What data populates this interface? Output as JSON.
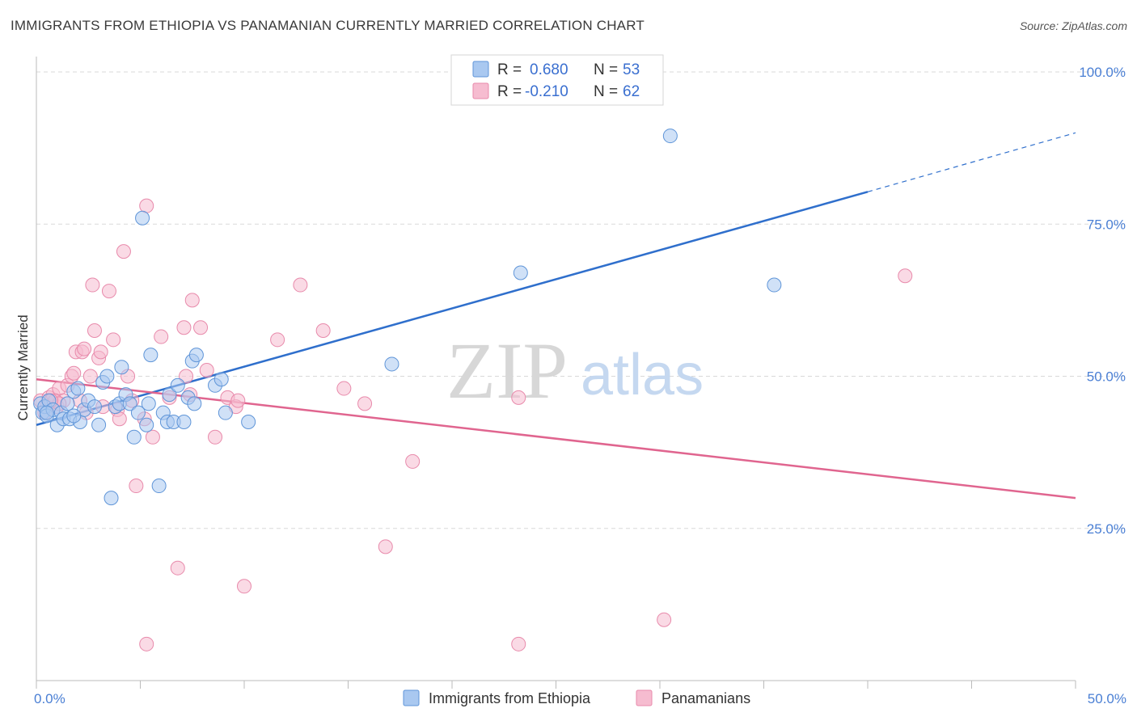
{
  "title": "IMMIGRANTS FROM ETHIOPIA VS PANAMANIAN CURRENTLY MARRIED CORRELATION CHART",
  "source": "Source: ZipAtlas.com",
  "watermark": {
    "zip": "ZIP",
    "atlas": "atlas"
  },
  "legend": {
    "rows": [
      {
        "r_label": "R =",
        "r_value": "0.680",
        "n_label": "N =",
        "n_value": "53"
      },
      {
        "r_label": "R =",
        "r_value": "-0.210",
        "n_label": "N =",
        "n_value": "62"
      }
    ]
  },
  "colors": {
    "blue_fill": "#a9c8f0",
    "blue_stroke": "#5f95d8",
    "blue_line": "#2f6fcc",
    "pink_fill": "#f6bcd0",
    "pink_stroke": "#e88aab",
    "pink_line": "#e0658f",
    "grid": "#d9d9d9",
    "tick_text": "#4a7fd4"
  },
  "chart_data": {
    "type": "scatter",
    "title": "IMMIGRANTS FROM ETHIOPIA VS PANAMANIAN CURRENTLY MARRIED CORRELATION CHART",
    "xlabel": "",
    "ylabel": "Currently Married",
    "xlim": [
      0,
      50
    ],
    "ylim": [
      0,
      105
    ],
    "x_tick_labels": [
      "0.0%",
      "50.0%"
    ],
    "y_ticks": [
      25,
      50,
      75,
      100
    ],
    "y_tick_labels": [
      "25.0%",
      "50.0%",
      "75.0%",
      "100.0%"
    ],
    "grid": true,
    "legend_position": "top-center",
    "series": [
      {
        "name": "Immigrants from Ethiopia",
        "color": "#a9c8f0",
        "trend": {
          "x": [
            0,
            40
          ],
          "y": [
            42,
            80.3
          ],
          "dashed_extension": {
            "x": [
              40,
              50
            ],
            "y": [
              80.3,
              90
            ]
          }
        },
        "points": [
          [
            0.2,
            45.5
          ],
          [
            0.3,
            44
          ],
          [
            0.4,
            45
          ],
          [
            0.5,
            43.5
          ],
          [
            0.6,
            46
          ],
          [
            0.8,
            44.5
          ],
          [
            1.0,
            42
          ],
          [
            1.2,
            44
          ],
          [
            1.3,
            43
          ],
          [
            1.5,
            45.5
          ],
          [
            1.6,
            43
          ],
          [
            1.8,
            47.5
          ],
          [
            2.0,
            48
          ],
          [
            2.1,
            42.5
          ],
          [
            2.3,
            44.5
          ],
          [
            2.5,
            46
          ],
          [
            2.8,
            45
          ],
          [
            3.0,
            42
          ],
          [
            3.2,
            49
          ],
          [
            3.4,
            50
          ],
          [
            3.6,
            30
          ],
          [
            3.8,
            45
          ],
          [
            4.0,
            45.5
          ],
          [
            4.1,
            51.5
          ],
          [
            4.3,
            47
          ],
          [
            4.5,
            45.5
          ],
          [
            4.7,
            40
          ],
          [
            4.9,
            44
          ],
          [
            5.1,
            76
          ],
          [
            5.3,
            42
          ],
          [
            5.4,
            45.5
          ],
          [
            5.5,
            53.5
          ],
          [
            5.9,
            32
          ],
          [
            6.1,
            44
          ],
          [
            6.3,
            42.5
          ],
          [
            6.4,
            47
          ],
          [
            6.6,
            42.5
          ],
          [
            6.8,
            48.5
          ],
          [
            7.1,
            42.5
          ],
          [
            7.3,
            46.5
          ],
          [
            7.5,
            52.5
          ],
          [
            7.6,
            45.5
          ],
          [
            7.7,
            53.5
          ],
          [
            8.6,
            48.5
          ],
          [
            8.9,
            49.5
          ],
          [
            9.1,
            44
          ],
          [
            10.2,
            42.5
          ],
          [
            17.1,
            52
          ],
          [
            23.3,
            67
          ],
          [
            30.5,
            89.5
          ],
          [
            35.5,
            65
          ],
          [
            0.5,
            44
          ],
          [
            1.8,
            43.5
          ]
        ]
      },
      {
        "name": "Panamanians",
        "color": "#f6bcd0",
        "trend": {
          "x": [
            0,
            50
          ],
          "y": [
            49.5,
            30
          ]
        },
        "points": [
          [
            0.2,
            46
          ],
          [
            0.4,
            44
          ],
          [
            0.5,
            45
          ],
          [
            0.6,
            46.5
          ],
          [
            0.8,
            47
          ],
          [
            1.0,
            45
          ],
          [
            1.1,
            48
          ],
          [
            1.3,
            46
          ],
          [
            1.5,
            48.5
          ],
          [
            1.7,
            50
          ],
          [
            1.8,
            50.5
          ],
          [
            1.9,
            54
          ],
          [
            2.1,
            46
          ],
          [
            2.2,
            54
          ],
          [
            2.4,
            44
          ],
          [
            2.6,
            50
          ],
          [
            2.7,
            65
          ],
          [
            2.8,
            57.5
          ],
          [
            3.0,
            53
          ],
          [
            3.1,
            54
          ],
          [
            3.2,
            45
          ],
          [
            3.5,
            64
          ],
          [
            3.7,
            56
          ],
          [
            3.9,
            44.5
          ],
          [
            4.0,
            43
          ],
          [
            4.2,
            70.5
          ],
          [
            4.4,
            50
          ],
          [
            4.6,
            46
          ],
          [
            4.8,
            32
          ],
          [
            5.2,
            43
          ],
          [
            5.3,
            78
          ],
          [
            5.6,
            40
          ],
          [
            6.0,
            56.5
          ],
          [
            6.4,
            46.5
          ],
          [
            6.8,
            18.5
          ],
          [
            7.1,
            58
          ],
          [
            7.2,
            50
          ],
          [
            7.4,
            47
          ],
          [
            7.5,
            62.5
          ],
          [
            7.9,
            58
          ],
          [
            8.2,
            51
          ],
          [
            8.6,
            40
          ],
          [
            9.2,
            46.5
          ],
          [
            9.6,
            45
          ],
          [
            9.7,
            46
          ],
          [
            10.0,
            15.5
          ],
          [
            11.6,
            56
          ],
          [
            12.7,
            65
          ],
          [
            13.8,
            57.5
          ],
          [
            14.8,
            48
          ],
          [
            15.8,
            45.5
          ],
          [
            16.8,
            22
          ],
          [
            18.1,
            36
          ],
          [
            23.2,
            46.5
          ],
          [
            30.2,
            10
          ],
          [
            41.8,
            66.5
          ],
          [
            0.9,
            46
          ],
          [
            5.3,
            6
          ],
          [
            23.2,
            6
          ],
          [
            1.1,
            45.5
          ],
          [
            2.3,
            54.5
          ],
          [
            0.7,
            46
          ]
        ]
      }
    ]
  },
  "bottom_legend": [
    {
      "label": "Immigrants from Ethiopia"
    },
    {
      "label": "Panamanians"
    }
  ]
}
